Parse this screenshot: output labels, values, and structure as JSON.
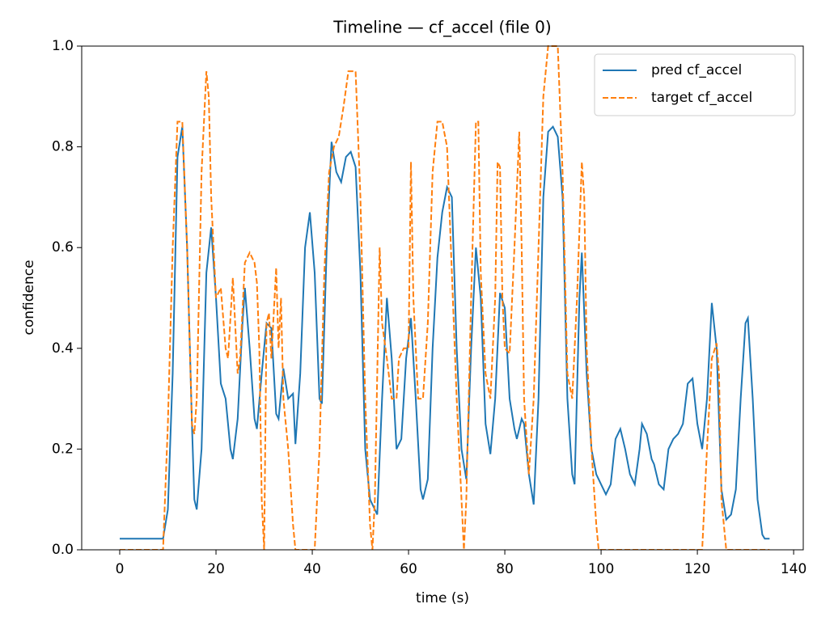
{
  "chart_data": {
    "type": "line",
    "title": "Timeline — cf_accel (file 0)",
    "xlabel": "time (s)",
    "ylabel": "confidence",
    "xlim": [
      -7.9,
      142
    ],
    "xticks": [
      0,
      20,
      40,
      60,
      80,
      100,
      120,
      140
    ],
    "ylim": [
      0,
      1
    ],
    "yticks": [
      {
        "value": 0,
        "label": "0.0"
      },
      0.2,
      0.4,
      0.6,
      0.8,
      {
        "value": 1,
        "label": "1.0"
      }
    ],
    "legend": "upper right",
    "series": [
      {
        "name": "pred cf_accel",
        "color": "#1f77b4",
        "dashed": false,
        "x": [
          0,
          9,
          10,
          11,
          12,
          13,
          14,
          15,
          15.5,
          16,
          17,
          18,
          19,
          20,
          21,
          22,
          23,
          23.5,
          24.5,
          25.5,
          26,
          27,
          28,
          28.5,
          29.5,
          30.5,
          31.5,
          32.5,
          33,
          34,
          35,
          36,
          36.5,
          37.5,
          38.5,
          39.5,
          40.5,
          41.5,
          42,
          43,
          44,
          45,
          46,
          47,
          48,
          49,
          50,
          51,
          52,
          53,
          53.5,
          54.5,
          55.5,
          56.5,
          57.5,
          58.5,
          59.5,
          60.5,
          61.5,
          62.5,
          63,
          64,
          65,
          66,
          67,
          68,
          69,
          70,
          71,
          72,
          73,
          74,
          75,
          76,
          77,
          78,
          79,
          80,
          81,
          82,
          82.5,
          83.5,
          84,
          85,
          86,
          87,
          88,
          89,
          90,
          91,
          92,
          93,
          94,
          94.5,
          95.5,
          96,
          97,
          98,
          99,
          100,
          101,
          102,
          103,
          104,
          105,
          106,
          107,
          108,
          108.5,
          109.5,
          110.5,
          111,
          112,
          113,
          114,
          115,
          116,
          117,
          118,
          119,
          120,
          121,
          122,
          123,
          124,
          125,
          126,
          127,
          128,
          129,
          130,
          130.5,
          131.5,
          132.5,
          133.5,
          134,
          135
        ],
        "values": [
          0.022,
          0.022,
          0.08,
          0.35,
          0.78,
          0.84,
          0.6,
          0.25,
          0.1,
          0.08,
          0.2,
          0.55,
          0.64,
          0.5,
          0.33,
          0.3,
          0.2,
          0.18,
          0.26,
          0.45,
          0.52,
          0.4,
          0.26,
          0.24,
          0.35,
          0.45,
          0.44,
          0.27,
          0.26,
          0.36,
          0.3,
          0.31,
          0.21,
          0.35,
          0.6,
          0.67,
          0.55,
          0.3,
          0.29,
          0.6,
          0.81,
          0.75,
          0.73,
          0.78,
          0.79,
          0.76,
          0.55,
          0.2,
          0.1,
          0.08,
          0.07,
          0.3,
          0.5,
          0.38,
          0.2,
          0.22,
          0.38,
          0.46,
          0.3,
          0.12,
          0.1,
          0.14,
          0.4,
          0.58,
          0.67,
          0.72,
          0.7,
          0.4,
          0.2,
          0.14,
          0.4,
          0.6,
          0.5,
          0.25,
          0.19,
          0.3,
          0.51,
          0.48,
          0.3,
          0.24,
          0.22,
          0.26,
          0.25,
          0.15,
          0.09,
          0.3,
          0.7,
          0.83,
          0.84,
          0.82,
          0.7,
          0.3,
          0.15,
          0.13,
          0.5,
          0.59,
          0.35,
          0.2,
          0.15,
          0.13,
          0.11,
          0.13,
          0.22,
          0.24,
          0.2,
          0.15,
          0.13,
          0.2,
          0.25,
          0.23,
          0.18,
          0.17,
          0.13,
          0.12,
          0.2,
          0.22,
          0.23,
          0.25,
          0.33,
          0.34,
          0.25,
          0.2,
          0.3,
          0.49,
          0.4,
          0.12,
          0.06,
          0.07,
          0.12,
          0.3,
          0.45,
          0.46,
          0.3,
          0.1,
          0.03,
          0.022,
          0.022
        ]
      },
      {
        "name": "target cf_accel",
        "color": "#ff7f0e",
        "dashed": true,
        "x": [
          0,
          9,
          10,
          11,
          12,
          13,
          14,
          15,
          15.5,
          16,
          17,
          18,
          18.5,
          19,
          20,
          21,
          22,
          22.5,
          23.5,
          24.5,
          25,
          26,
          27,
          28,
          28.5,
          29,
          29.5,
          30,
          30.5,
          31,
          31.5,
          32.5,
          33,
          33.5,
          34,
          35,
          36,
          36.5,
          40.5,
          41.5,
          42.5,
          43.5,
          44.5,
          45.5,
          46.5,
          47.5,
          49,
          50,
          51,
          52,
          52.5,
          53,
          53.5,
          54,
          54.5,
          55.5,
          56.5,
          57.5,
          58,
          59,
          60,
          60.5,
          61,
          62,
          63,
          64,
          65,
          66,
          67,
          68,
          69,
          70,
          71,
          71.5,
          72,
          73,
          74,
          74.5,
          75,
          76,
          77,
          78,
          78.5,
          79,
          79.5,
          80,
          81,
          82,
          83,
          83.5,
          84,
          85,
          86,
          87,
          88,
          89,
          90,
          91,
          92,
          93,
          94,
          95,
          96,
          96.5,
          97,
          98,
          99,
          99.5,
          121,
          122,
          123,
          124,
          124.5,
          125,
          126,
          135
        ],
        "values": [
          0,
          0,
          0.25,
          0.6,
          0.85,
          0.85,
          0.6,
          0.25,
          0.23,
          0.3,
          0.75,
          0.95,
          0.9,
          0.7,
          0.5,
          0.52,
          0.4,
          0.38,
          0.54,
          0.35,
          0.38,
          0.57,
          0.59,
          0.57,
          0.53,
          0.4,
          0.1,
          0,
          0.45,
          0.47,
          0.38,
          0.56,
          0.4,
          0.5,
          0.3,
          0.2,
          0.05,
          0,
          0,
          0.2,
          0.55,
          0.75,
          0.8,
          0.82,
          0.88,
          0.95,
          0.95,
          0.7,
          0.3,
          0.05,
          0,
          0.1,
          0.35,
          0.6,
          0.45,
          0.38,
          0.3,
          0.3,
          0.38,
          0.4,
          0.4,
          0.77,
          0.5,
          0.3,
          0.3,
          0.45,
          0.75,
          0.85,
          0.85,
          0.8,
          0.55,
          0.3,
          0.1,
          0,
          0.1,
          0.5,
          0.85,
          0.85,
          0.55,
          0.35,
          0.3,
          0.5,
          0.77,
          0.76,
          0.5,
          0.4,
          0.39,
          0.6,
          0.83,
          0.6,
          0.3,
          0.15,
          0.3,
          0.6,
          0.9,
          1,
          1,
          1,
          0.75,
          0.35,
          0.3,
          0.5,
          0.77,
          0.7,
          0.4,
          0.2,
          0.05,
          0,
          0,
          0.2,
          0.38,
          0.41,
          0.35,
          0.1,
          0,
          0
        ]
      }
    ]
  }
}
